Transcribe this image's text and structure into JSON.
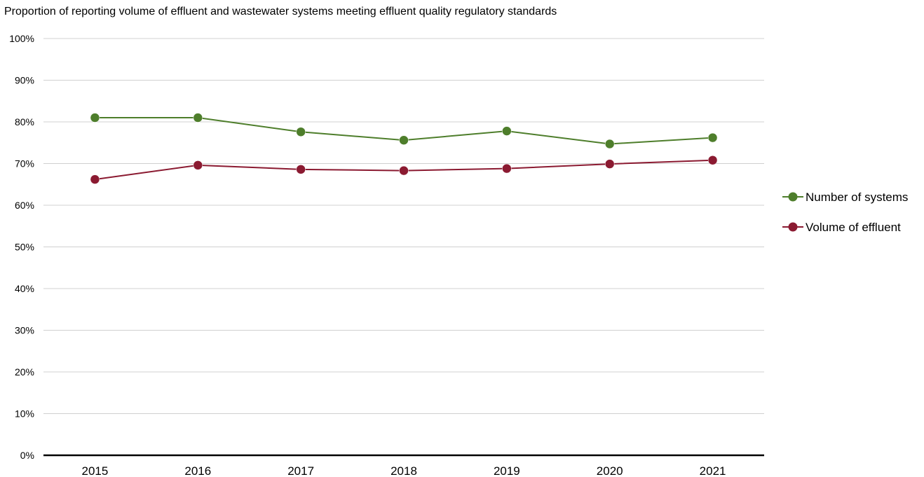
{
  "chart_data": {
    "type": "line",
    "title": "Proportion of reporting volume of effluent and wastewater systems meeting effluent quality regulatory standards",
    "xlabel": "",
    "ylabel": "",
    "categories": [
      "2015",
      "2016",
      "2017",
      "2018",
      "2019",
      "2020",
      "2021"
    ],
    "y_ticks": [
      "0%",
      "10%",
      "20%",
      "30%",
      "40%",
      "50%",
      "60%",
      "70%",
      "80%",
      "90%",
      "100%"
    ],
    "ylim": [
      0,
      100
    ],
    "grid": true,
    "legend_position": "right",
    "series": [
      {
        "name": "Number of systems",
        "color": "#4e7e2b",
        "values": [
          81,
          81,
          77.6,
          75.6,
          77.8,
          74.7,
          76.2
        ]
      },
      {
        "name": "Volume of effluent",
        "color": "#8b1a31",
        "values": [
          66.2,
          69.6,
          68.6,
          68.3,
          68.8,
          69.9,
          70.8
        ]
      }
    ]
  }
}
